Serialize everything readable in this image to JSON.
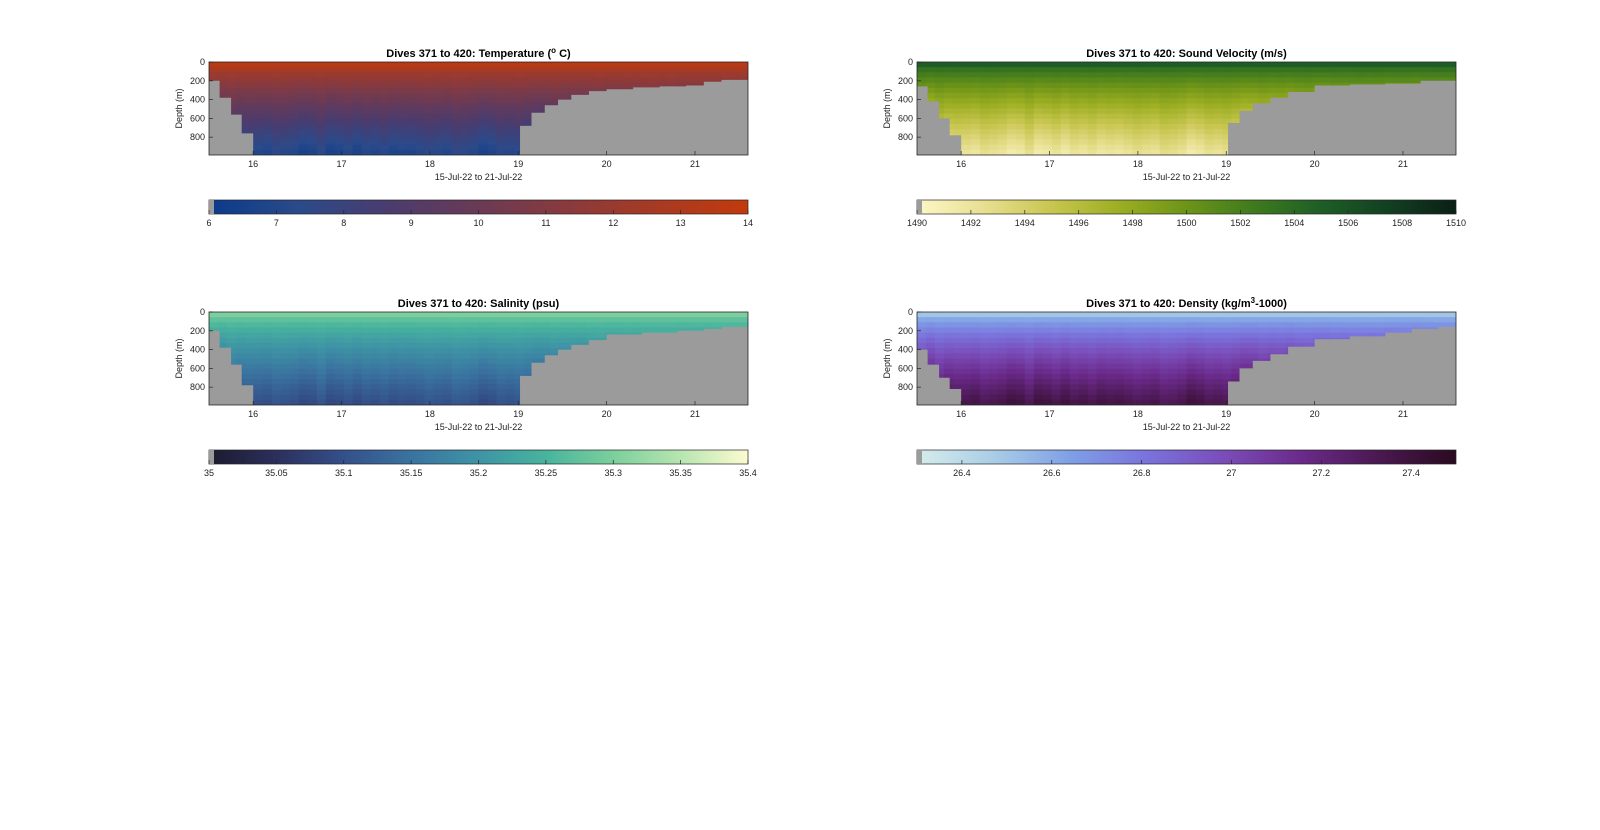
{
  "chart_data": [
    {
      "type": "heatmap",
      "title": "Dives 371 to 420: Temperature (",
      "title_sup": "o",
      "title_tail": " C)",
      "xlabel": "15-Jul-22 to 21-Jul-22",
      "ylabel": "Depth (m)",
      "x_ticks": [
        "16",
        "17",
        "18",
        "19",
        "20",
        "21"
      ],
      "y_ticks": [
        "0",
        "200",
        "400",
        "600",
        "800"
      ],
      "xlim": [
        15.5,
        21.6
      ],
      "ylim": [
        0,
        990
      ],
      "colorbar": {
        "ticks": [
          "6",
          "7",
          "8",
          "9",
          "10",
          "11",
          "12",
          "13",
          "14"
        ],
        "range": [
          6,
          14
        ],
        "colors": [
          "#0b3a8a",
          "#2b4a8a",
          "#4a3c6e",
          "#6a3a55",
          "#8a3a3d",
          "#a83a22",
          "#c23a0c"
        ]
      },
      "surface_value": 13.5,
      "deep_value": 7.0,
      "seabed_profile": [
        [
          15.5,
          200
        ],
        [
          15.62,
          380
        ],
        [
          15.75,
          560
        ],
        [
          15.87,
          760
        ],
        [
          16.0,
          990
        ],
        [
          19.0,
          990
        ],
        [
          19.02,
          680
        ],
        [
          19.15,
          540
        ],
        [
          19.3,
          460
        ],
        [
          19.45,
          400
        ],
        [
          19.6,
          350
        ],
        [
          19.8,
          310
        ],
        [
          20.0,
          290
        ],
        [
          20.3,
          270
        ],
        [
          20.6,
          260
        ],
        [
          20.9,
          250
        ],
        [
          21.1,
          210
        ],
        [
          21.3,
          190
        ],
        [
          21.6,
          170
        ]
      ]
    },
    {
      "type": "heatmap",
      "title": "Dives 371 to 420: Sound Velocity (m/s)",
      "title_sup": "",
      "title_tail": "",
      "xlabel": "15-Jul-22 to 21-Jul-22",
      "ylabel": "Depth (m)",
      "x_ticks": [
        "16",
        "17",
        "18",
        "19",
        "20",
        "21"
      ],
      "y_ticks": [
        "0",
        "200",
        "400",
        "600",
        "800"
      ],
      "xlim": [
        15.5,
        21.6
      ],
      "ylim": [
        0,
        990
      ],
      "colorbar": {
        "ticks": [
          "1490",
          "1492",
          "1494",
          "1496",
          "1498",
          "1500",
          "1502",
          "1504",
          "1506",
          "1508",
          "1510"
        ],
        "range": [
          1490,
          1510
        ],
        "colors": [
          "#fdf7c8",
          "#e7df90",
          "#c8c650",
          "#9cae22",
          "#6d9418",
          "#3f7a1e",
          "#1e5e26",
          "#123f22",
          "#0b1f15"
        ]
      },
      "surface_value": 1505,
      "deep_value": 1492,
      "seabed_profile": [
        [
          15.5,
          260
        ],
        [
          15.62,
          420
        ],
        [
          15.75,
          600
        ],
        [
          15.87,
          780
        ],
        [
          16.0,
          990
        ],
        [
          19.0,
          990
        ],
        [
          19.02,
          650
        ],
        [
          19.15,
          520
        ],
        [
          19.3,
          440
        ],
        [
          19.5,
          380
        ],
        [
          19.7,
          320
        ],
        [
          20.0,
          250
        ],
        [
          20.4,
          240
        ],
        [
          20.8,
          230
        ],
        [
          21.2,
          200
        ],
        [
          21.6,
          160
        ]
      ]
    },
    {
      "type": "heatmap",
      "title": "Dives 371 to 420: Salinity (psu)",
      "title_sup": "",
      "title_tail": "",
      "xlabel": "15-Jul-22 to 21-Jul-22",
      "ylabel": "Depth (m)",
      "x_ticks": [
        "16",
        "17",
        "18",
        "19",
        "20",
        "21"
      ],
      "y_ticks": [
        "0",
        "200",
        "400",
        "600",
        "800"
      ],
      "xlim": [
        15.5,
        21.6
      ],
      "ylim": [
        0,
        990
      ],
      "colorbar": {
        "ticks": [
          "35",
          "35.05",
          "35.1",
          "35.15",
          "35.2",
          "35.25",
          "35.3",
          "35.35",
          "35.4"
        ],
        "range": [
          35.0,
          35.4
        ],
        "colors": [
          "#1c1a2e",
          "#2c2f5c",
          "#34508a",
          "#3a73a0",
          "#3e94a5",
          "#48b49d",
          "#7ccf9c",
          "#b7e5b0",
          "#fdfbd0"
        ]
      },
      "surface_value": 35.3,
      "deep_value": 35.1,
      "seabed_profile": [
        [
          15.5,
          200
        ],
        [
          15.62,
          380
        ],
        [
          15.75,
          560
        ],
        [
          15.87,
          780
        ],
        [
          16.0,
          990
        ],
        [
          19.0,
          990
        ],
        [
          19.02,
          680
        ],
        [
          19.15,
          540
        ],
        [
          19.3,
          460
        ],
        [
          19.45,
          400
        ],
        [
          19.6,
          350
        ],
        [
          19.8,
          300
        ],
        [
          20.0,
          240
        ],
        [
          20.4,
          220
        ],
        [
          20.8,
          200
        ],
        [
          21.1,
          180
        ],
        [
          21.3,
          160
        ],
        [
          21.6,
          150
        ]
      ]
    },
    {
      "type": "heatmap",
      "title": "Dives 371 to 420: Density (kg/m",
      "title_sup": "3",
      "title_tail": "-1000)",
      "xlabel": "15-Jul-22 to 21-Jul-22",
      "ylabel": "Depth (m)",
      "x_ticks": [
        "16",
        "17",
        "18",
        "19",
        "20",
        "21"
      ],
      "y_ticks": [
        "0",
        "200",
        "400",
        "600",
        "800"
      ],
      "xlim": [
        15.5,
        21.6
      ],
      "ylim": [
        0,
        990
      ],
      "colorbar": {
        "ticks": [
          "26.4",
          "26.6",
          "26.8",
          "27",
          "27.2",
          "27.4"
        ],
        "range": [
          26.3,
          27.5
        ],
        "colors": [
          "#d6ecec",
          "#a9cde6",
          "#7f9fe6",
          "#7a72dc",
          "#7a4cb8",
          "#6a2a8a",
          "#4a1850",
          "#2a0a20"
        ]
      },
      "surface_value": 26.5,
      "deep_value": 27.35,
      "seabed_profile": [
        [
          15.5,
          400
        ],
        [
          15.62,
          560
        ],
        [
          15.75,
          700
        ],
        [
          15.87,
          820
        ],
        [
          16.0,
          990
        ],
        [
          19.0,
          990
        ],
        [
          19.02,
          740
        ],
        [
          19.15,
          600
        ],
        [
          19.3,
          520
        ],
        [
          19.5,
          450
        ],
        [
          19.7,
          370
        ],
        [
          20.0,
          290
        ],
        [
          20.4,
          260
        ],
        [
          20.8,
          220
        ],
        [
          21.1,
          180
        ],
        [
          21.4,
          160
        ],
        [
          21.6,
          140
        ]
      ]
    }
  ]
}
